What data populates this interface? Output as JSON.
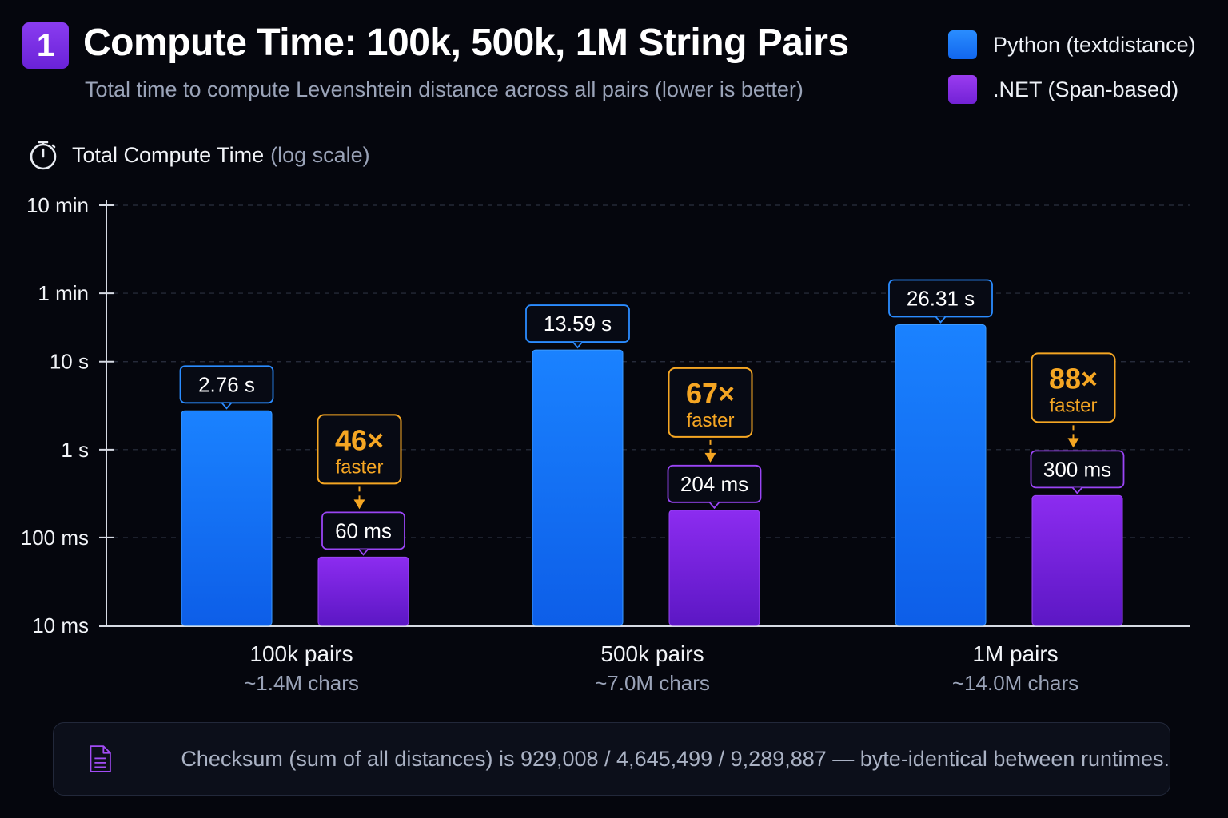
{
  "header": {
    "badge": "1",
    "title": "Compute Time: 100k, 500k, 1M String Pairs",
    "subtitle": "Total time to compute Levenshtein distance across all pairs (lower is better)"
  },
  "legend": [
    {
      "label": "Python (textdistance)",
      "color": "#1a80ff"
    },
    {
      "label": ".NET (Span-based)",
      "color": "#8a2be2"
    }
  ],
  "axis_title": {
    "icon": "stopwatch-icon",
    "main": "Total Compute Time",
    "note": "(log scale)"
  },
  "chart_data": {
    "type": "bar",
    "yscale": "log",
    "ylabel": "Total Compute Time (log scale)",
    "y_ticks": [
      {
        "label": "10 min",
        "seconds": 600
      },
      {
        "label": "1 min",
        "seconds": 60
      },
      {
        "label": "10 s",
        "seconds": 10
      },
      {
        "label": "1 s",
        "seconds": 1
      },
      {
        "label": "100 ms",
        "seconds": 0.1
      },
      {
        "label": "10 ms",
        "seconds": 0.01
      }
    ],
    "ylim_seconds": [
      0.01,
      600
    ],
    "grid": true,
    "categories": [
      {
        "label": "100k pairs",
        "sublabel": "~1.4M chars"
      },
      {
        "label": "500k pairs",
        "sublabel": "~7.0M chars"
      },
      {
        "label": "1M pairs",
        "sublabel": "~14.0M chars"
      }
    ],
    "series": [
      {
        "name": "Python (textdistance)",
        "color": "#1a80ff",
        "values_seconds": [
          2.76,
          13.59,
          26.31
        ],
        "labels": [
          "2.76 s",
          "13.59 s",
          "26.31 s"
        ]
      },
      {
        "name": ".NET (Span-based)",
        "color": "#8a2be2",
        "values_seconds": [
          0.06,
          0.204,
          0.3
        ],
        "labels": [
          "60 ms",
          "204 ms",
          "300 ms"
        ]
      }
    ],
    "speedups": [
      {
        "value": "46×",
        "text": "faster"
      },
      {
        "value": "67×",
        "text": "faster"
      },
      {
        "value": "88×",
        "text": "faster"
      }
    ],
    "annotation_color": "#f5a623"
  },
  "footer": {
    "icon": "document-icon",
    "text": "Checksum (sum of all distances) is 929,008 / 4,645,499 / 9,289,887 — byte-identical between runtimes."
  }
}
